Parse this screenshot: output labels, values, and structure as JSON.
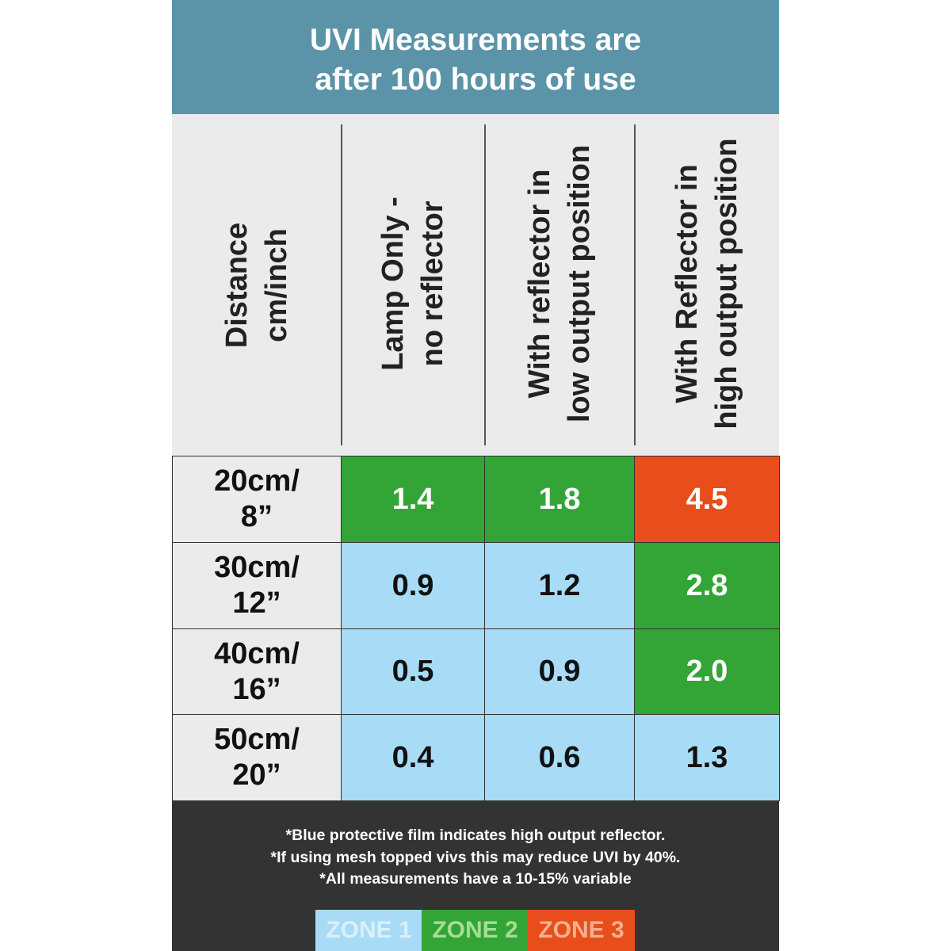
{
  "header": {
    "title_lines": [
      "UVI Measurements are",
      "after 100 hours of use"
    ]
  },
  "table": {
    "columns": [
      [
        "Distance",
        "cm/inch"
      ],
      [
        "Lamp Only -",
        "no reflector"
      ],
      [
        "With reflector in",
        "low output position"
      ],
      [
        "With Reflector in",
        "high output position"
      ]
    ],
    "rows": [
      {
        "label": [
          "20cm/",
          "8”"
        ],
        "cells": [
          {
            "text": "1.4",
            "color": "#33a537",
            "text_color": "#ffffff"
          },
          {
            "text": "1.8",
            "color": "#33a537",
            "text_color": "#ffffff"
          },
          {
            "text": "4.5",
            "color": "#e84e1b",
            "text_color": "#ffffff"
          }
        ]
      },
      {
        "label": [
          "30cm/",
          "12”"
        ],
        "cells": [
          {
            "text": "0.9",
            "color": "#a8dbf5",
            "text_color": "#111111"
          },
          {
            "text": "1.2",
            "color": "#a8dbf5",
            "text_color": "#111111"
          },
          {
            "text": "2.8",
            "color": "#33a537",
            "text_color": "#ffffff"
          }
        ]
      },
      {
        "label": [
          "40cm/",
          "16”"
        ],
        "cells": [
          {
            "text": "0.5",
            "color": "#a8dbf5",
            "text_color": "#111111"
          },
          {
            "text": "0.9",
            "color": "#a8dbf5",
            "text_color": "#111111"
          },
          {
            "text": "2.0",
            "color": "#33a537",
            "text_color": "#ffffff"
          }
        ]
      },
      {
        "label": [
          "50cm/",
          "20”"
        ],
        "cells": [
          {
            "text": "0.4",
            "color": "#a8dbf5",
            "text_color": "#111111"
          },
          {
            "text": "0.6",
            "color": "#a8dbf5",
            "text_color": "#111111"
          },
          {
            "text": "1.3",
            "color": "#a8dbf5",
            "text_color": "#111111"
          }
        ]
      }
    ]
  },
  "footer": {
    "notes": [
      "*Blue protective film indicates high output reflector.",
      "*If using mesh topped vivs this may reduce UVI by 40%.",
      "*All measurements have a 10-15% variable"
    ],
    "zones": [
      {
        "label": "ZONE 1",
        "color": "#a8dbf5",
        "text_color": "#d9f0fb"
      },
      {
        "label": "ZONE 2",
        "color": "#33a537",
        "text_color": "#a6dd93"
      },
      {
        "label": "ZONE 3",
        "color": "#e84e1b",
        "text_color": "#f6b08f"
      }
    ]
  }
}
